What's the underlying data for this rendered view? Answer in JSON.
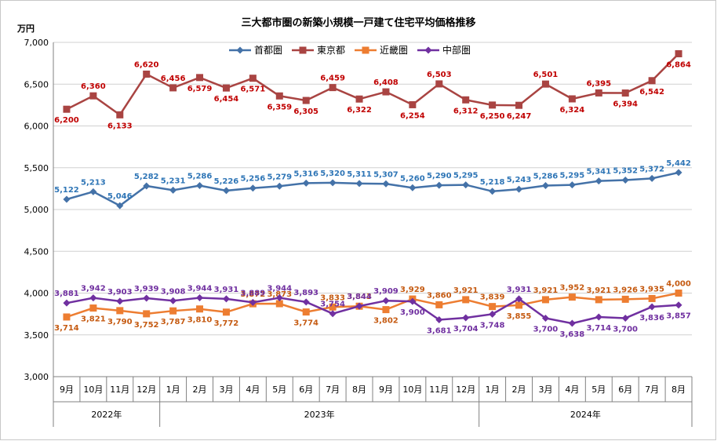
{
  "chart_data": {
    "type": "line",
    "title": "三大都市圏の新築小規模一戸建て住宅平均価格推移",
    "ylabel": "万円",
    "ylim": [
      3000,
      7000
    ],
    "yticks": [
      3000,
      3500,
      4000,
      4500,
      5000,
      5500,
      6000,
      6500,
      7000
    ],
    "ytick_labels": [
      "3,000",
      "3,500",
      "4,000",
      "4,500",
      "5,000",
      "5,500",
      "6,000",
      "6,500",
      "7,000"
    ],
    "categories": [
      "9月",
      "10月",
      "11月",
      "12月",
      "1月",
      "2月",
      "3月",
      "4月",
      "5月",
      "6月",
      "7月",
      "8月",
      "9月",
      "10月",
      "11月",
      "12月",
      "1月",
      "2月",
      "3月",
      "4月",
      "5月",
      "6月",
      "7月",
      "8月"
    ],
    "year_groups": [
      {
        "label": "2022年",
        "start": 0,
        "end": 3
      },
      {
        "label": "2023年",
        "start": 4,
        "end": 15
      },
      {
        "label": "2024年",
        "start": 16,
        "end": 23
      }
    ],
    "legend_position": "top-center",
    "series": [
      {
        "name": "首都圏",
        "color": "#4472A8",
        "marker": "diamond",
        "values": [
          5122,
          5213,
          5046,
          5282,
          5231,
          5286,
          5226,
          5256,
          5279,
          5316,
          5320,
          5311,
          5307,
          5260,
          5290,
          5295,
          5218,
          5243,
          5286,
          5295,
          5341,
          5352,
          5372,
          5442
        ],
        "labels": [
          "5,122",
          "5,213",
          "5,046",
          "5,282",
          "5,231",
          "5,286",
          "5,226",
          "5,256",
          "5,279",
          "5,316",
          "5,320",
          "5,311",
          "5,307",
          "5,260",
          "5,290",
          "5,295",
          "5,218",
          "5,243",
          "5,286",
          "5,295",
          "5,341",
          "5,352",
          "5,372",
          "5,442"
        ],
        "label_color": "#2E75B6"
      },
      {
        "name": "東京都",
        "color": "#A94442",
        "marker": "square",
        "values": [
          6200,
          6360,
          6133,
          6620,
          6456,
          6579,
          6454,
          6571,
          6359,
          6305,
          6459,
          6322,
          6408,
          6254,
          6503,
          6312,
          6250,
          6247,
          6501,
          6324,
          6395,
          6394,
          6542,
          6864
        ],
        "labels": [
          "6,200",
          "6,360",
          "6,133",
          "6,620",
          "6,456",
          "6,579",
          "6,454",
          "6,571",
          "6,359",
          "6,305",
          "6,459",
          "6,322",
          "6,408",
          "6,254",
          "6,503",
          "6,312",
          "6,250",
          "6,247",
          "6,501",
          "6,324",
          "6,395",
          "6,394",
          "6,542",
          "6,864"
        ],
        "label_color": "#C00000"
      },
      {
        "name": "近畿圏",
        "color": "#ED7D31",
        "marker": "square",
        "values": [
          3714,
          3821,
          3790,
          3752,
          3787,
          3810,
          3772,
          3872,
          3873,
          3774,
          3833,
          3843,
          3802,
          3929,
          3860,
          3921,
          3839,
          3855,
          3921,
          3952,
          3921,
          3926,
          3935,
          4000
        ],
        "labels": [
          "3,714",
          "3,821",
          "3,790",
          "3,752",
          "3,787",
          "3,810",
          "3,772",
          "3,872",
          "3,873",
          "3,774",
          "3,833",
          "3,843",
          "3,802",
          "3,929",
          "3,860",
          "3,921",
          "3,839",
          "3,855",
          "3,921",
          "3,952",
          "3,921",
          "3,926",
          "3,935",
          "4,000"
        ],
        "label_color": "#C55A11"
      },
      {
        "name": "中部圏",
        "color": "#7030A0",
        "marker": "diamond",
        "values": [
          3881,
          3942,
          3903,
          3939,
          3908,
          3944,
          3931,
          3889,
          3944,
          3893,
          3754,
          3844,
          3909,
          3900,
          3681,
          3704,
          3748,
          3931,
          3700,
          3638,
          3714,
          3700,
          3836,
          3857
        ],
        "labels": [
          "3,881",
          "3,942",
          "3,903",
          "3,939",
          "3,908",
          "3,944",
          "3,931",
          "3,889",
          "3,944",
          "3,893",
          "3,754",
          "3,844",
          "3,909",
          "3,900",
          "3,681",
          "3,704",
          "3,748",
          "3,931",
          "3,700",
          "3,638",
          "3,714",
          "3,700",
          "3,836",
          "3,857"
        ],
        "label_color": "#7030A0"
      }
    ]
  }
}
